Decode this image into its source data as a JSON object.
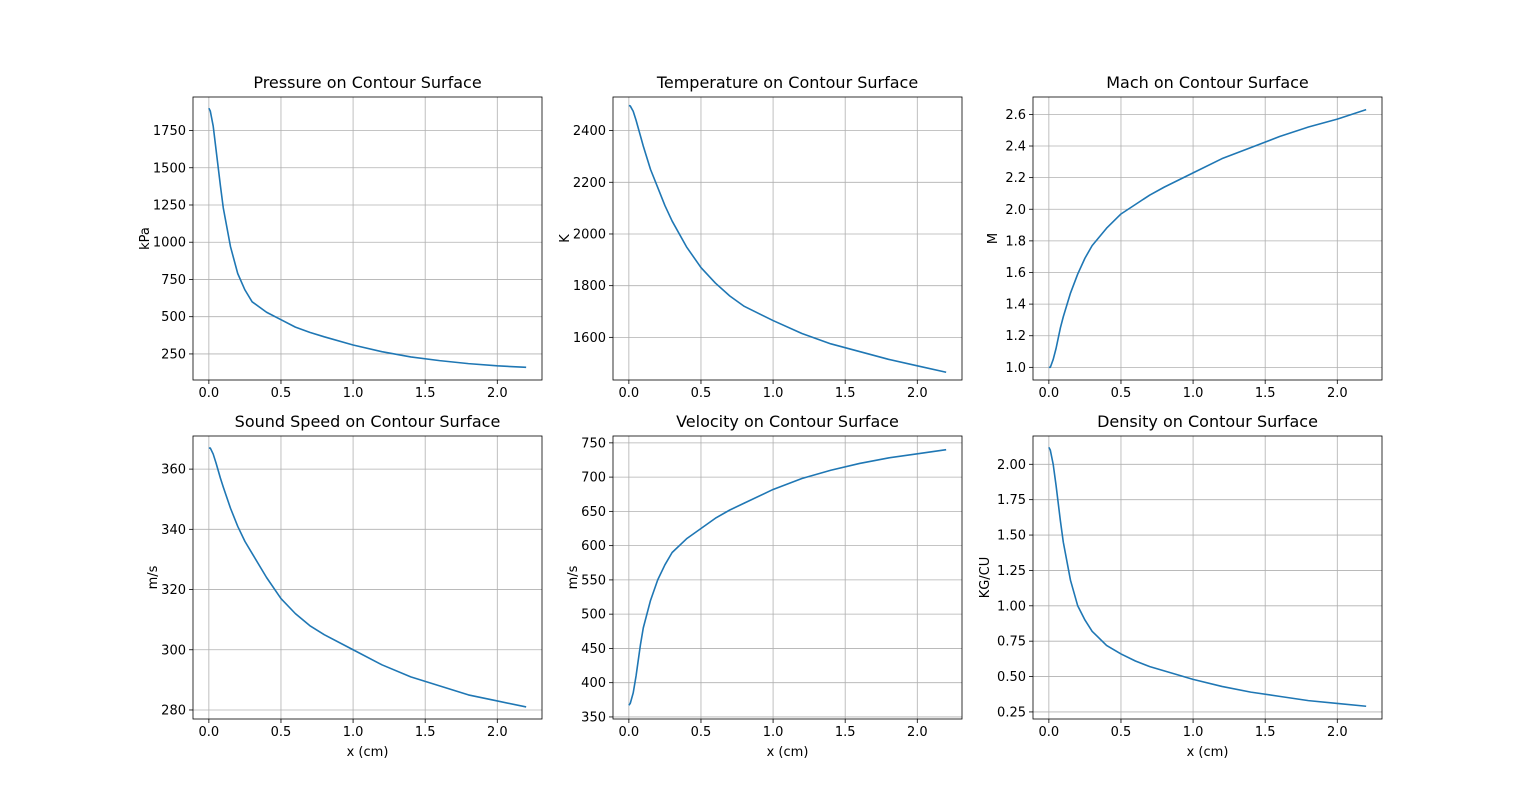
{
  "figure": {
    "line_color": "#1f77b4",
    "grid_color": "#b0b0b0"
  },
  "chart_data": [
    {
      "type": "line",
      "title": "Pressure on Contour Surface",
      "xlabel": "",
      "ylabel": "kPa",
      "xlim": [
        -0.11,
        2.31
      ],
      "ylim": [
        75,
        1975
      ],
      "xticks": [
        "0.0",
        "0.5",
        "1.0",
        "1.5",
        "2.0"
      ],
      "yticks": [
        "250",
        "500",
        "750",
        "1000",
        "1250",
        "1500",
        "1750"
      ],
      "grid": true,
      "x": [
        0,
        0.01,
        0.03,
        0.05,
        0.08,
        0.1,
        0.15,
        0.2,
        0.25,
        0.3,
        0.4,
        0.5,
        0.6,
        0.7,
        0.8,
        1.0,
        1.2,
        1.4,
        1.6,
        1.8,
        2.0,
        2.2
      ],
      "y": [
        1900,
        1880,
        1780,
        1620,
        1380,
        1230,
        970,
        790,
        680,
        600,
        530,
        480,
        430,
        395,
        365,
        310,
        265,
        230,
        205,
        185,
        170,
        160
      ]
    },
    {
      "type": "line",
      "title": "Temperature on Contour Surface",
      "xlabel": "",
      "ylabel": "K",
      "xlim": [
        -0.11,
        2.31
      ],
      "ylim": [
        1435,
        2530
      ],
      "xticks": [
        "0.0",
        "0.5",
        "1.0",
        "1.5",
        "2.0"
      ],
      "yticks": [
        "1600",
        "1800",
        "2000",
        "2200",
        "2400"
      ],
      "grid": true,
      "x": [
        0,
        0.01,
        0.03,
        0.05,
        0.08,
        0.1,
        0.15,
        0.2,
        0.25,
        0.3,
        0.4,
        0.5,
        0.6,
        0.7,
        0.8,
        1.0,
        1.2,
        1.4,
        1.6,
        1.8,
        2.0,
        2.2
      ],
      "y": [
        2497,
        2495,
        2475,
        2440,
        2380,
        2340,
        2250,
        2180,
        2110,
        2050,
        1950,
        1870,
        1810,
        1760,
        1720,
        1665,
        1615,
        1575,
        1545,
        1515,
        1490,
        1465
      ]
    },
    {
      "type": "line",
      "title": "Mach on Contour Surface",
      "xlabel": "",
      "ylabel": "M",
      "xlim": [
        -0.11,
        2.31
      ],
      "ylim": [
        0.92,
        2.71
      ],
      "xticks": [
        "0.0",
        "0.5",
        "1.0",
        "1.5",
        "2.0"
      ],
      "yticks": [
        "1.0",
        "1.2",
        "1.4",
        "1.6",
        "1.8",
        "2.0",
        "2.2",
        "2.4",
        "2.6"
      ],
      "grid": true,
      "x": [
        0,
        0.01,
        0.03,
        0.05,
        0.08,
        0.1,
        0.15,
        0.2,
        0.25,
        0.3,
        0.4,
        0.5,
        0.6,
        0.7,
        0.8,
        1.0,
        1.2,
        1.4,
        1.6,
        1.8,
        2.0,
        2.2
      ],
      "y": [
        1.0,
        1.0,
        1.05,
        1.12,
        1.25,
        1.32,
        1.47,
        1.59,
        1.69,
        1.77,
        1.88,
        1.97,
        2.03,
        2.09,
        2.14,
        2.23,
        2.32,
        2.39,
        2.46,
        2.52,
        2.57,
        2.63
      ]
    },
    {
      "type": "line",
      "title": "Sound Speed on Contour Surface",
      "xlabel": "x (cm)",
      "ylabel": "m/s",
      "xlim": [
        -0.11,
        2.31
      ],
      "ylim": [
        277,
        371
      ],
      "xticks": [
        "0.0",
        "0.5",
        "1.0",
        "1.5",
        "2.0"
      ],
      "yticks": [
        "280",
        "300",
        "320",
        "340",
        "360"
      ],
      "grid": true,
      "x": [
        0,
        0.01,
        0.03,
        0.05,
        0.08,
        0.1,
        0.15,
        0.2,
        0.25,
        0.3,
        0.4,
        0.5,
        0.6,
        0.7,
        0.8,
        1.0,
        1.2,
        1.4,
        1.6,
        1.8,
        2.0,
        2.2
      ],
      "y": [
        367,
        367,
        365,
        362,
        357,
        354,
        347,
        341,
        336,
        332,
        324,
        317,
        312,
        308,
        305,
        300,
        295,
        291,
        288,
        285,
        283,
        281
      ]
    },
    {
      "type": "line",
      "title": "Velocity on Contour Surface",
      "xlabel": "x (cm)",
      "ylabel": "m/s",
      "xlim": [
        -0.11,
        2.31
      ],
      "ylim": [
        347,
        760
      ],
      "xticks": [
        "0.0",
        "0.5",
        "1.0",
        "1.5",
        "2.0"
      ],
      "yticks": [
        "350",
        "400",
        "450",
        "500",
        "550",
        "600",
        "650",
        "700",
        "750"
      ],
      "grid": true,
      "x": [
        0,
        0.01,
        0.03,
        0.05,
        0.08,
        0.1,
        0.15,
        0.2,
        0.25,
        0.3,
        0.4,
        0.5,
        0.6,
        0.7,
        0.8,
        1.0,
        1.2,
        1.4,
        1.6,
        1.8,
        2.0,
        2.2
      ],
      "y": [
        367,
        370,
        385,
        410,
        455,
        480,
        520,
        550,
        572,
        590,
        610,
        625,
        640,
        652,
        662,
        682,
        698,
        710,
        720,
        728,
        734,
        740
      ]
    },
    {
      "type": "line",
      "title": "Density on Contour Surface",
      "xlabel": "x (cm)",
      "ylabel": "KG/CU",
      "xlim": [
        -0.11,
        2.31
      ],
      "ylim": [
        0.2,
        2.2
      ],
      "xticks": [
        "0.0",
        "0.5",
        "1.0",
        "1.5",
        "2.0"
      ],
      "yticks": [
        "0.25",
        "0.50",
        "0.75",
        "1.00",
        "1.25",
        "1.50",
        "1.75",
        "2.00"
      ],
      "grid": true,
      "x": [
        0,
        0.01,
        0.03,
        0.05,
        0.08,
        0.1,
        0.15,
        0.2,
        0.25,
        0.3,
        0.4,
        0.5,
        0.6,
        0.7,
        0.8,
        1.0,
        1.2,
        1.4,
        1.6,
        1.8,
        2.0,
        2.2
      ],
      "y": [
        2.12,
        2.1,
        2.0,
        1.85,
        1.6,
        1.45,
        1.18,
        1.0,
        0.9,
        0.82,
        0.72,
        0.66,
        0.61,
        0.57,
        0.54,
        0.48,
        0.43,
        0.39,
        0.36,
        0.33,
        0.31,
        0.29
      ]
    }
  ]
}
